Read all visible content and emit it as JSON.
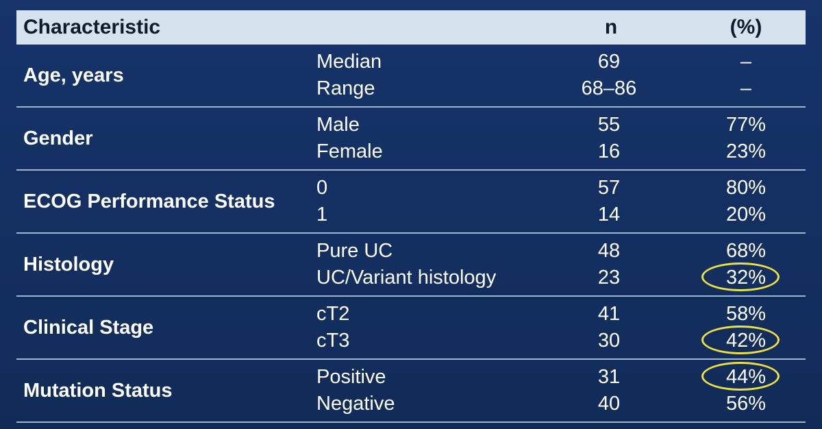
{
  "header": {
    "characteristic": "Characteristic",
    "n": "n",
    "pct": "(%)"
  },
  "groups": [
    {
      "label": "Age, years",
      "rows": [
        {
          "label": "Median",
          "n": "69",
          "pct": "–",
          "circled": false
        },
        {
          "label": "Range",
          "n": "68–86",
          "pct": "–",
          "circled": false
        }
      ]
    },
    {
      "label": "Gender",
      "rows": [
        {
          "label": "Male",
          "n": "55",
          "pct": "77%",
          "circled": false
        },
        {
          "label": "Female",
          "n": "16",
          "pct": "23%",
          "circled": false
        }
      ]
    },
    {
      "label": "ECOG Performance Status",
      "rows": [
        {
          "label": "0",
          "n": "57",
          "pct": "80%",
          "circled": false
        },
        {
          "label": "1",
          "n": "14",
          "pct": "20%",
          "circled": false
        }
      ]
    },
    {
      "label": "Histology",
      "rows": [
        {
          "label": "Pure UC",
          "n": "48",
          "pct": "68%",
          "circled": false
        },
        {
          "label": "UC/Variant histology",
          "n": "23",
          "pct": "32%",
          "circled": true
        }
      ]
    },
    {
      "label": "Clinical Stage",
      "rows": [
        {
          "label": "cT2",
          "n": "41",
          "pct": "58%",
          "circled": false
        },
        {
          "label": "cT3",
          "n": "30",
          "pct": "42%",
          "circled": true
        }
      ]
    },
    {
      "label": "Mutation Status",
      "rows": [
        {
          "label": "Positive",
          "n": "31",
          "pct": "44%",
          "circled": true
        },
        {
          "label": "Negative",
          "n": "40",
          "pct": "56%",
          "circled": false
        }
      ]
    }
  ],
  "colors": {
    "background": "#14305f",
    "header_bg": "#d6e3ee",
    "highlight_circle": "#ece040",
    "rule": "#9fb6cc"
  }
}
